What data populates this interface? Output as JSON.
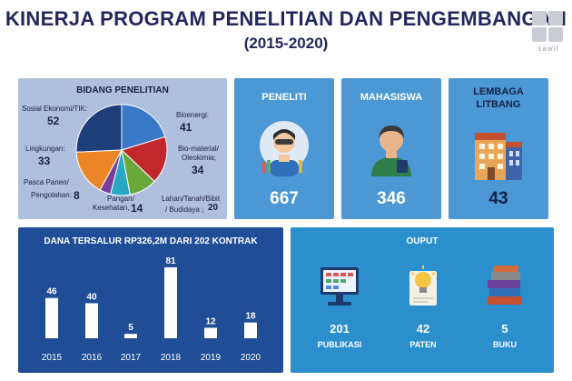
{
  "header": {
    "title": "KINERJA PROGRAM PENELITIAN DAN PENGEMBANGAN",
    "subtitle": "(2015-2020)",
    "logo_text": "sawit"
  },
  "bidang": {
    "title": "BIDANG PENELITIAN",
    "colors": {
      "Sosial Ekonomi/TIK": "#1f3f7a",
      "Bioenergi": "#3a78c8",
      "Bio-material/Oleokimia": "#c0282e",
      "Lahan/Tanah/Bibit/Budidaya": "#6aa83b",
      "Kesehatan": "#7a3f9a",
      "Pangan": "#27a8c4",
      "Pasca Panen/Pengolahan": "#ec8626",
      "Lingkungan": "#ec8626"
    },
    "labels": {
      "sosial": "Sosial Ekonomi/TIK:",
      "bioenergi": "Bioenergi:",
      "biomaterial_1": "Bio-material/",
      "biomaterial_2": "Oleokimia;",
      "lingkungan": "Lingkungan:",
      "pascapanen_1": "Pasca Panen/",
      "pascapanen_2": "Pengolahan:",
      "pangan": "Pangan/",
      "kesehatan": "Kesehatan,",
      "lahan_1": "Lahan/Tanah/Bibit",
      "lahan_2": "/ Budidaya ;"
    },
    "values": {
      "sosial": "52",
      "bioenergi": "41",
      "biomaterial": "34",
      "lingkungan": "33",
      "pascapanen": "8",
      "kesehatan": "14",
      "lahan": "20"
    }
  },
  "chart_data": [
    {
      "type": "pie",
      "title": "BIDANG PENELITIAN",
      "categories": [
        "Sosial Ekonomi/TIK",
        "Bioenergi",
        "Bio-material/Oleokimia",
        "Lahan/Tanah/Bibit/Budidaya",
        "Pangan/Kesehatan",
        "Pasca Panen/Pengolahan",
        "Lingkungan"
      ],
      "values": [
        52,
        41,
        34,
        20,
        14,
        8,
        33
      ]
    },
    {
      "type": "bar",
      "title": "DANA TERSALUR RP326,2M DARI 202 KONTRAK",
      "categories": [
        "2015",
        "2016",
        "2017",
        "2018",
        "2019",
        "2020"
      ],
      "values": [
        46,
        40,
        5,
        81,
        12,
        18
      ]
    }
  ],
  "stats": {
    "peneliti": {
      "label": "PENELITI",
      "value": "667"
    },
    "mahasiswa": {
      "label": "MAHASISWA",
      "value": "346"
    },
    "lembaga": {
      "label_1": "LEMBAGA",
      "label_2": "LITBANG",
      "value": "43"
    }
  },
  "dana": {
    "title": "DANA TERSALUR RP326,2M DARI 202 KONTRAK"
  },
  "output": {
    "title": "OUPUT",
    "items": [
      {
        "value": "201",
        "label": "PUBLIKASI",
        "icon": "computer-icon"
      },
      {
        "value": "42",
        "label": "PATEN",
        "icon": "lightbulb-icon"
      },
      {
        "value": "5",
        "label": "BUKU",
        "icon": "books-icon"
      }
    ]
  },
  "colors": {
    "title": "#22285e",
    "stat_card": "#4b98d4",
    "dana_card": "#1f4e96",
    "output_card": "#2b8fce",
    "bidang_card": "#aec0dd"
  }
}
